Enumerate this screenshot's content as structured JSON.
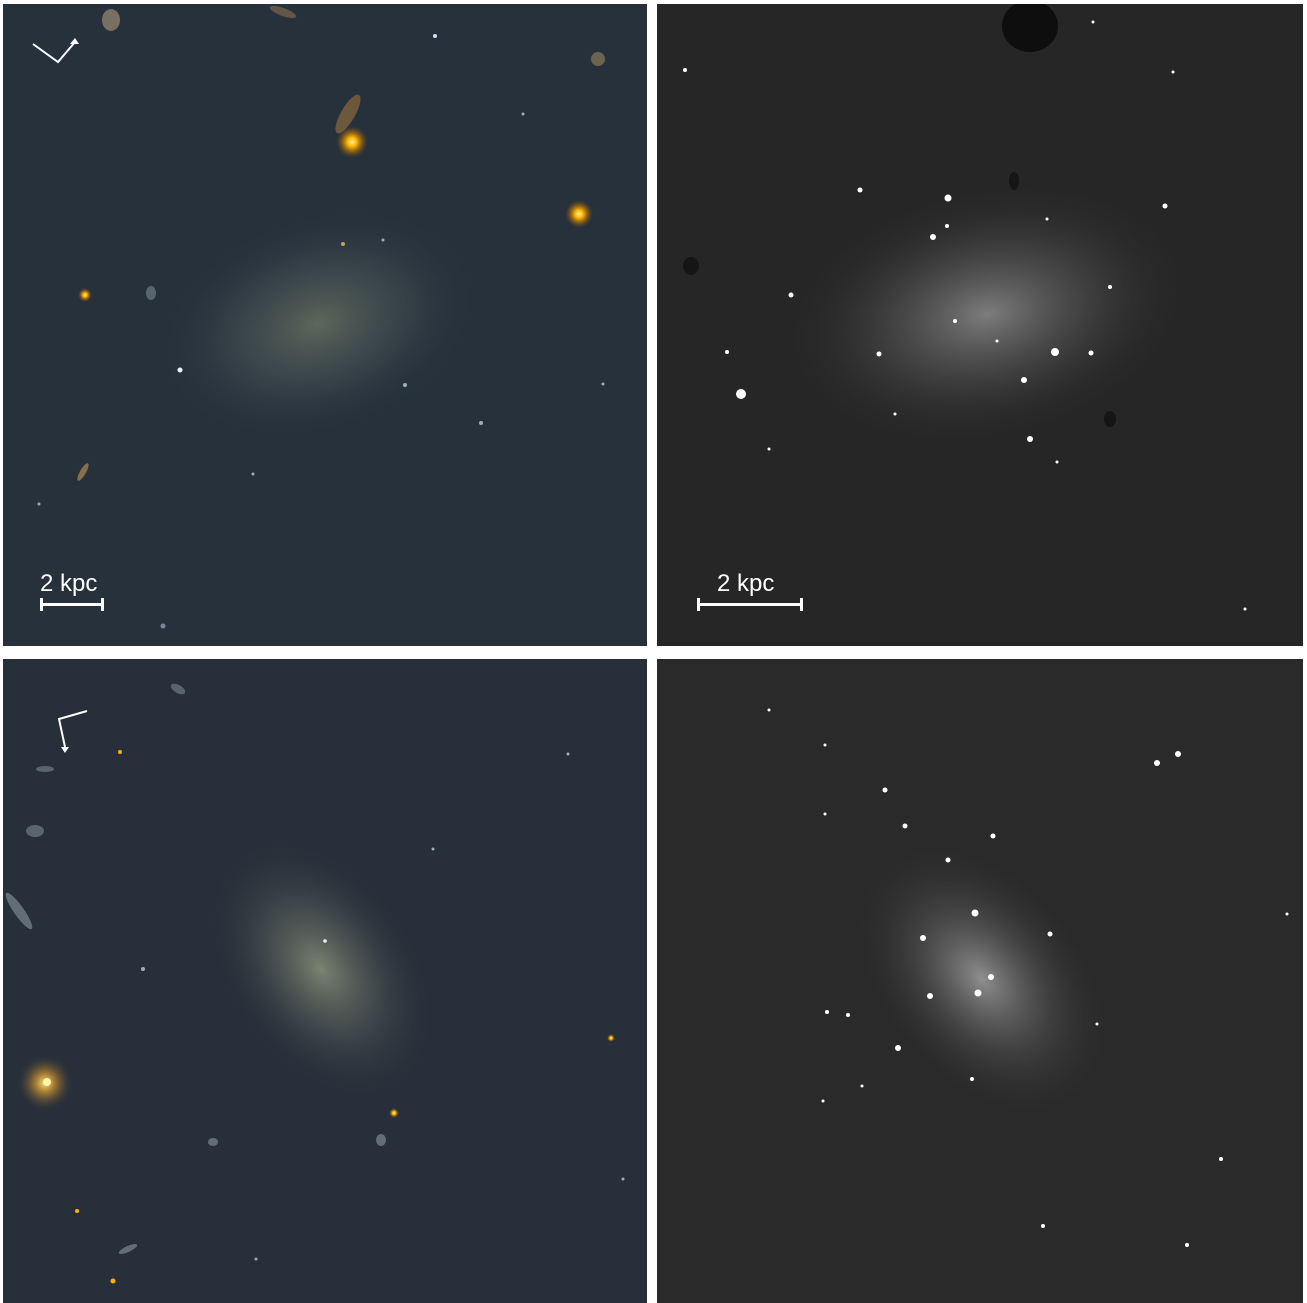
{
  "panels": {
    "top_left": {
      "scale_label": "2 kpc"
    },
    "top_right": {
      "scale_label": "2 kpc"
    }
  },
  "colors": {
    "divider": "#ffffff",
    "color_panel_bg": "#26313c",
    "mono_panel_bg": "#262626",
    "star_orange": "#ffb000",
    "diffuse_glow": "#8e9a7e"
  },
  "icons": {
    "compass": "compass-arrow-icon"
  }
}
